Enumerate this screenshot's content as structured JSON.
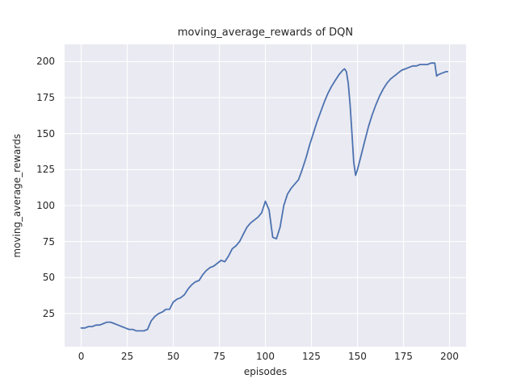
{
  "figure": {
    "title": "moving_average_rewards of DQN",
    "xlabel": "episodes",
    "ylabel": "moving_average_rewards"
  },
  "chart_data": {
    "type": "line",
    "title": "moving_average_rewards of DQN",
    "xlabel": "episodes",
    "ylabel": "moving_average_rewards",
    "xlim": [
      -9,
      209
    ],
    "ylim": [
      2,
      212
    ],
    "xticks": [
      0,
      25,
      50,
      75,
      100,
      125,
      150,
      175,
      200
    ],
    "yticks": [
      25,
      50,
      75,
      100,
      125,
      150,
      175,
      200
    ],
    "grid": true,
    "legend_position": "none",
    "line_color": "#4c72b0",
    "background": "#eaeaf2",
    "gridline_color": "#ffffff",
    "series": [
      {
        "name": "moving_average_rewards",
        "x": [
          0,
          2,
          4,
          6,
          8,
          10,
          12,
          14,
          16,
          18,
          20,
          22,
          24,
          26,
          28,
          30,
          32,
          34,
          36,
          38,
          40,
          42,
          44,
          46,
          48,
          50,
          52,
          54,
          56,
          58,
          60,
          62,
          64,
          66,
          68,
          70,
          72,
          74,
          76,
          78,
          80,
          82,
          84,
          86,
          88,
          90,
          92,
          94,
          96,
          98,
          100,
          102,
          104,
          106,
          108,
          110,
          112,
          114,
          116,
          118,
          120,
          122,
          124,
          126,
          128,
          130,
          132,
          134,
          136,
          138,
          140,
          142,
          143,
          144,
          145,
          146,
          147,
          148,
          149,
          150,
          152,
          154,
          156,
          158,
          160,
          162,
          164,
          166,
          168,
          170,
          172,
          174,
          176,
          178,
          180,
          182,
          184,
          186,
          188,
          190,
          192,
          193,
          194,
          196,
          198,
          199
        ],
        "y": [
          15,
          15,
          16,
          16,
          17,
          17,
          18,
          19,
          19,
          18,
          17,
          16,
          15,
          14,
          14,
          13,
          13,
          13,
          14,
          20,
          23,
          25,
          26,
          28,
          28,
          33,
          35,
          36,
          38,
          42,
          45,
          47,
          48,
          52,
          55,
          57,
          58,
          60,
          62,
          61,
          65,
          70,
          72,
          75,
          80,
          85,
          88,
          90,
          92,
          95,
          103,
          97,
          78,
          77,
          85,
          100,
          108,
          112,
          115,
          118,
          125,
          133,
          142,
          150,
          158,
          165,
          172,
          178,
          183,
          187,
          191,
          194,
          195,
          193,
          185,
          170,
          150,
          130,
          121,
          125,
          135,
          145,
          155,
          163,
          170,
          176,
          181,
          185,
          188,
          190,
          192,
          194,
          195,
          196,
          197,
          197,
          198,
          198,
          198,
          199,
          199,
          190,
          191,
          192,
          193,
          193
        ]
      }
    ]
  }
}
